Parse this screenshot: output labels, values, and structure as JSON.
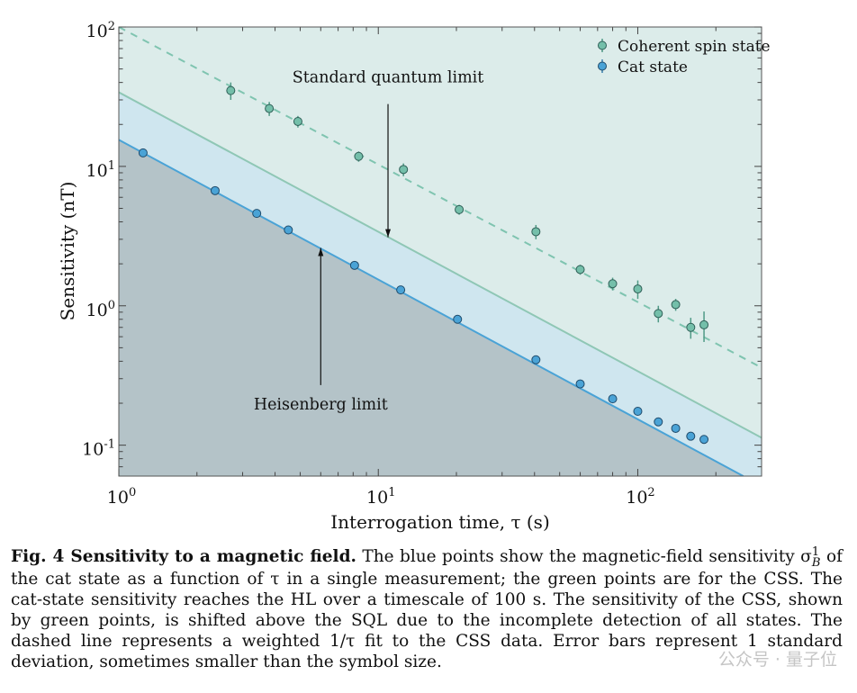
{
  "chart_data": {
    "type": "scatter",
    "xscale": "log",
    "yscale": "log",
    "xlim": [
      1,
      300
    ],
    "ylim": [
      0.06,
      100
    ],
    "xlabel": "Interrogation time, τ (s)",
    "ylabel": "Sensitivity (nT)",
    "x_ticks": [
      {
        "label": "10",
        "exp": "0"
      },
      {
        "label": "10",
        "exp": "1"
      },
      {
        "label": "10",
        "exp": "2"
      }
    ],
    "y_ticks": [
      {
        "label": "10",
        "exp": "-1"
      },
      {
        "label": "10",
        "exp": "0"
      },
      {
        "label": "10",
        "exp": "1"
      },
      {
        "label": "10",
        "exp": "2"
      }
    ],
    "legend_position": "top-right",
    "series": [
      {
        "name": "Coherent spin state",
        "color": "#74bfaa",
        "x": [
          2.7,
          3.8,
          4.9,
          8.4,
          12.5,
          20.5,
          40.5,
          60,
          80,
          100,
          120,
          140,
          160,
          180
        ],
        "y": [
          35,
          26,
          21,
          11.8,
          9.5,
          4.9,
          3.4,
          1.82,
          1.44,
          1.32,
          0.88,
          1.02,
          0.7,
          0.73
        ],
        "err": [
          5,
          3,
          2,
          1,
          1,
          0.4,
          0.4,
          0.15,
          0.15,
          0.2,
          0.12,
          0.1,
          0.12,
          0.18
        ]
      },
      {
        "name": "Cat state",
        "color": "#4aa3d6",
        "x": [
          1.24,
          2.35,
          3.4,
          4.5,
          8.1,
          12.2,
          20.2,
          40.5,
          60,
          80,
          100,
          120,
          140,
          160,
          180
        ],
        "y": [
          12.5,
          6.7,
          4.6,
          3.5,
          1.95,
          1.3,
          0.8,
          0.41,
          0.275,
          0.215,
          0.175,
          0.147,
          0.132,
          0.116,
          0.11
        ]
      }
    ],
    "lines": [
      {
        "kind": "SQL",
        "color": "#8fc7b5",
        "points": [
          [
            1,
            34
          ],
          [
            300,
            0.113
          ]
        ],
        "dash": false
      },
      {
        "kind": "HL",
        "color": "#4aa3d6",
        "points": [
          [
            1,
            15.5
          ],
          [
            255,
            0.06
          ]
        ],
        "dash": false
      },
      {
        "kind": "fit",
        "color": "#7fc4b0",
        "points": [
          [
            1,
            100
          ],
          [
            300,
            0.36
          ]
        ],
        "dash": true
      }
    ],
    "annotations": [
      {
        "text": "Standard quantum limit",
        "label_at": [
          10.9,
          40
        ],
        "arrow_from": [
          10.9,
          28
        ],
        "arrow_to": [
          10.9,
          3.1
        ]
      },
      {
        "text": "Heisenberg limit",
        "label_at": [
          6.0,
          0.18
        ],
        "arrow_from": [
          6.0,
          0.27
        ],
        "arrow_to": [
          6.0,
          2.6
        ]
      }
    ],
    "fill_colors": {
      "upper": "#dcecea",
      "middle": "#cfe6ef",
      "lower": "#b4c3c8"
    }
  },
  "caption": {
    "lead": "Fig. 4  Sensitivity to a magnetic field.",
    "body": "The blue points show the magnetic-field sensitivity σ",
    "sym_sub": "B",
    "sym_sup": "1",
    "tail": "of the cat state as a function of τ in a single measurement; the green points are for the CSS. The cat-state sensitivity reaches the HL over a timescale of 100 s. The sensitivity of the CSS, shown by green points, is shifted above the SQL due to the incomplete detection of all states. The dashed line represents a weighted 1/τ fit to the CSS data. Error bars represent 1 standard deviation, sometimes smaller than the symbol size."
  },
  "watermark": "公众号 · 量子位"
}
